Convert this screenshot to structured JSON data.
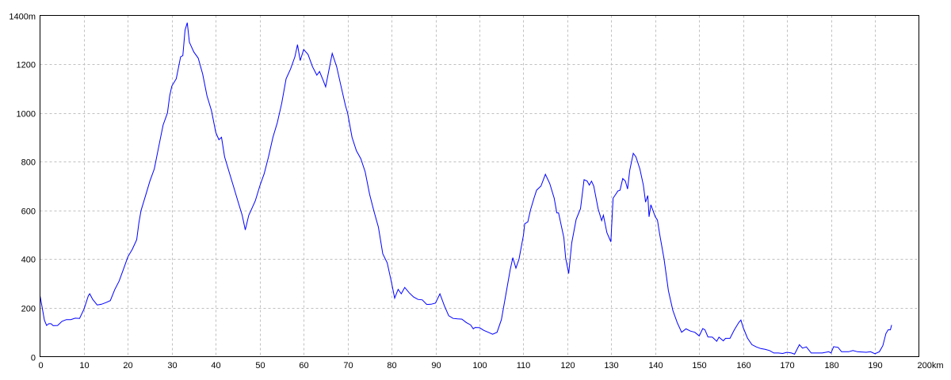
{
  "chart_data": {
    "type": "line",
    "title": "",
    "xlabel": "",
    "ylabel": "",
    "xlim": [
      0,
      200
    ],
    "ylim": [
      0,
      1400
    ],
    "grid": true,
    "x_ticks": [
      "0",
      "10",
      "20",
      "30",
      "40",
      "50",
      "60",
      "70",
      "80",
      "90",
      "100",
      "110",
      "120",
      "130",
      "140",
      "150",
      "160",
      "170",
      "180",
      "190",
      "200km"
    ],
    "y_ticks": [
      "0",
      "200",
      "400",
      "600",
      "800",
      "1000",
      "1200",
      "1400m"
    ],
    "colors": {
      "line": "#0000ff",
      "grid": "#c0c0c0",
      "axis": "#000000"
    },
    "series": [
      {
        "x": [
          0,
          0.5,
          1,
          1.5,
          2,
          2.5,
          3,
          4,
          5,
          6,
          7,
          8,
          9,
          10,
          11,
          11.3,
          12,
          13,
          14,
          15,
          16,
          17,
          18,
          19,
          20,
          21,
          22,
          22.5,
          23,
          24,
          25,
          26,
          27,
          28,
          29,
          29.5,
          30,
          31,
          32,
          32.5,
          33,
          33.5,
          34,
          35,
          36,
          37,
          38,
          39,
          40,
          40.7,
          41.3,
          42,
          43,
          44,
          45,
          46,
          46.7,
          47.5,
          48,
          49,
          50,
          51,
          52,
          53,
          54,
          55,
          56,
          57,
          58,
          58.6,
          59.2,
          60,
          61,
          62,
          63,
          63.6,
          64.5,
          65,
          66,
          66.5,
          67.5,
          68.5,
          69.5,
          70,
          71,
          72,
          73,
          74,
          75,
          76,
          77,
          78,
          79,
          80,
          80.7,
          81.5,
          82.2,
          83,
          84,
          85,
          86,
          87,
          88,
          89,
          90,
          91,
          92,
          93,
          94,
          95,
          96,
          97,
          98,
          98.6,
          99,
          100,
          101,
          102,
          103,
          104,
          105,
          106,
          107,
          107.6,
          108.3,
          109,
          110,
          110.3,
          111,
          111.6,
          112.4,
          113,
          114,
          115,
          116,
          117,
          117.6,
          118,
          119.2,
          119.6,
          120.3,
          121,
          122,
          123,
          123.8,
          124.5,
          125,
          125.5,
          126,
          127,
          127.8,
          128.2,
          129,
          129.9,
          130.4,
          131,
          131.5,
          132,
          132.6,
          133.2,
          133.7,
          134.2,
          135,
          135.6,
          136.5,
          137.3,
          137.8,
          138.3,
          138.6,
          139,
          140,
          140.5,
          141,
          142,
          143,
          144,
          145,
          146,
          147,
          148,
          149,
          150,
          150.8,
          151.3,
          152,
          153,
          154,
          154.5,
          155.5,
          156,
          157,
          158,
          159,
          159.5,
          160,
          161,
          162,
          163,
          164,
          165,
          166,
          167,
          168,
          169,
          170,
          171,
          171.7,
          172.8,
          173.5,
          174.4,
          175.5,
          176,
          178,
          179.5,
          180,
          180.6,
          181.6,
          182.4,
          184,
          185,
          186,
          188,
          189,
          190,
          191,
          191.8,
          192.5,
          193,
          193.5,
          193.8
        ],
        "y": [
          250,
          200,
          150,
          128,
          135,
          135,
          127,
          128,
          145,
          152,
          152,
          158,
          157,
          195,
          250,
          258,
          235,
          212,
          215,
          222,
          230,
          275,
          310,
          360,
          410,
          440,
          480,
          550,
          600,
          660,
          720,
          770,
          860,
          950,
          1000,
          1070,
          1110,
          1140,
          1230,
          1235,
          1340,
          1370,
          1290,
          1250,
          1225,
          1160,
          1070,
          1010,
          920,
          890,
          900,
          820,
          760,
          700,
          640,
          580,
          520,
          580,
          600,
          640,
          700,
          750,
          820,
          900,
          960,
          1040,
          1140,
          1180,
          1230,
          1280,
          1215,
          1260,
          1240,
          1190,
          1155,
          1170,
          1130,
          1107,
          1200,
          1244,
          1190,
          1110,
          1030,
          1000,
          900,
          845,
          812,
          758,
          666,
          596,
          531,
          422,
          385,
          303,
          240,
          276,
          258,
          284,
          262,
          245,
          235,
          233,
          214,
          215,
          220,
          258,
          210,
          168,
          157,
          155,
          154,
          140,
          130,
          114,
          120,
          119,
          108,
          100,
          92,
          100,
          152,
          255,
          357,
          406,
          363,
          400,
          498,
          545,
          553,
          601,
          650,
          683,
          700,
          748,
          710,
          650,
          590,
          590,
          488,
          406,
          341,
          466,
          563,
          607,
          726,
          720,
          704,
          720,
          700,
          607,
          558,
          580,
          509,
          471,
          650,
          666,
          680,
          683,
          731,
          720,
          688,
          764,
          834,
          820,
          770,
          704,
          634,
          661,
          574,
          623,
          574,
          560,
          504,
          401,
          271,
          190,
          140,
          100,
          114,
          105,
          100,
          85,
          115,
          110,
          81,
          80,
          63,
          80,
          65,
          75,
          75,
          110,
          140,
          150,
          120,
          76,
          49,
          40,
          33,
          30,
          25,
          15,
          15,
          13,
          18,
          15,
          10,
          49,
          35,
          40,
          15,
          15,
          15,
          20,
          15,
          41,
          38,
          20,
          20,
          25,
          20,
          18,
          20,
          12,
          20,
          45,
          95,
          110,
          110,
          130
        ]
      }
    ]
  }
}
